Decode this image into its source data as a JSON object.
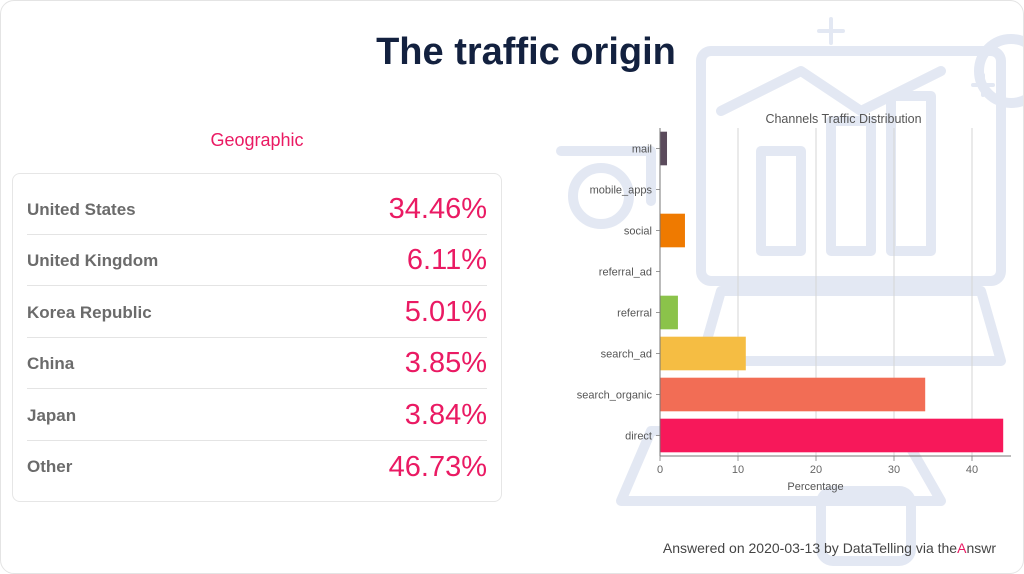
{
  "title": "The traffic origin",
  "geographic": {
    "heading": "Geographic",
    "rows": [
      {
        "country": "United States",
        "share": "34.46%"
      },
      {
        "country": "United Kingdom",
        "share": "6.11%"
      },
      {
        "country": "Korea Republic",
        "share": "5.01%"
      },
      {
        "country": "China",
        "share": "3.85%"
      },
      {
        "country": "Japan",
        "share": "3.84%"
      },
      {
        "country": "Other",
        "share": "46.73%"
      }
    ]
  },
  "chart_data": {
    "type": "bar",
    "orientation": "horizontal",
    "title": "Channels Traffic Distribution",
    "xlabel": "Percentage",
    "ylabel": "",
    "categories": [
      "mail",
      "mobile_apps",
      "social",
      "referral_ad",
      "referral",
      "search_ad",
      "search_organic",
      "direct"
    ],
    "values": [
      0.9,
      0,
      3.2,
      0,
      2.3,
      11,
      34,
      44
    ],
    "colors": [
      "#5b4b5c",
      "#7a6a7e",
      "#ef7a00",
      "#c0b0c0",
      "#8bc34a",
      "#f5bd43",
      "#f26d55",
      "#f7185a"
    ],
    "xticks": [
      0,
      10,
      20,
      30,
      40
    ],
    "xlim": [
      0,
      45
    ],
    "grid": true
  },
  "footer": {
    "prefix": "Answered on 2020-03-13 by DataTelling via the",
    "accent": "A",
    "suffix": "nswr"
  }
}
